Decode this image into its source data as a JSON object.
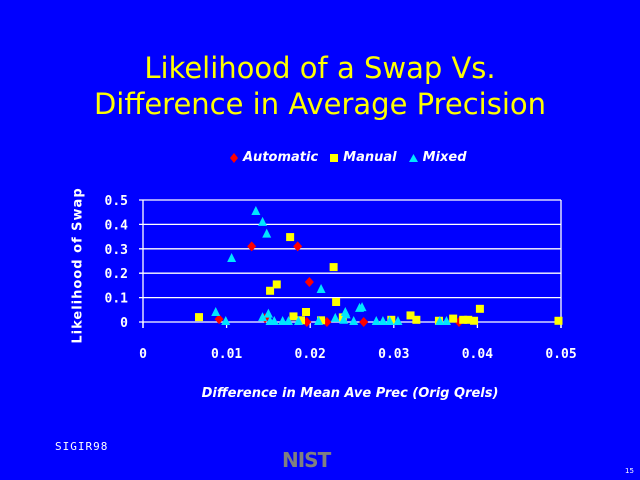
{
  "slide": {
    "title_line1": "Likelihood of a Swap Vs.",
    "title_line2": "Difference in Average Precision",
    "footer_left": "SIGIR98",
    "logo": "NIST",
    "page_number": "15"
  },
  "colors": {
    "background": "#0000ff",
    "title": "#ffff00",
    "automatic": "#ff0000",
    "manual": "#ffff00",
    "mixed": "#00e5ff",
    "axis": "#ffffff"
  },
  "chart_data": {
    "type": "scatter",
    "title": "Likelihood of a Swap Vs. Difference in Average Precision",
    "xlabel": "Difference in Mean Ave Prec (Orig Qrels)",
    "ylabel": "Likelihood of Swap",
    "xlim": [
      0,
      0.05
    ],
    "ylim": [
      0,
      0.5
    ],
    "xticks": [
      "0",
      "0.01",
      "0.02",
      "0.03",
      "0.04",
      "0.05"
    ],
    "yticks": [
      "0",
      "0.1",
      "0.2",
      "0.3",
      "0.4",
      "0.5"
    ],
    "grid": "horizontal",
    "legend_position": "top",
    "series": [
      {
        "name": "Automatic",
        "marker": "diamond",
        "points": [
          [
            0.0091,
            0.012
          ],
          [
            0.013,
            0.31
          ],
          [
            0.0146,
            0.016
          ],
          [
            0.0185,
            0.31
          ],
          [
            0.0196,
            0.0
          ],
          [
            0.0199,
            0.164
          ],
          [
            0.022,
            0.0
          ],
          [
            0.0264,
            0.0
          ],
          [
            0.0378,
            0.0
          ]
        ]
      },
      {
        "name": "Manual",
        "marker": "square",
        "points": [
          [
            0.0067,
            0.02
          ],
          [
            0.0152,
            0.128
          ],
          [
            0.016,
            0.154
          ],
          [
            0.0176,
            0.348
          ],
          [
            0.018,
            0.023
          ],
          [
            0.0189,
            0.007
          ],
          [
            0.0195,
            0.041
          ],
          [
            0.0213,
            0.007
          ],
          [
            0.0228,
            0.225
          ],
          [
            0.0231,
            0.082
          ],
          [
            0.0239,
            0.019
          ],
          [
            0.0297,
            0.009
          ],
          [
            0.032,
            0.027
          ],
          [
            0.0327,
            0.009
          ],
          [
            0.0354,
            0.005
          ],
          [
            0.0371,
            0.014
          ],
          [
            0.0383,
            0.009
          ],
          [
            0.0389,
            0.009
          ],
          [
            0.0396,
            0.005
          ],
          [
            0.0403,
            0.054
          ],
          [
            0.0497,
            0.005
          ]
        ]
      },
      {
        "name": "Mixed",
        "marker": "triangle",
        "points": [
          [
            0.0087,
            0.037
          ],
          [
            0.0099,
            0.0
          ],
          [
            0.0106,
            0.258
          ],
          [
            0.0135,
            0.451
          ],
          [
            0.0143,
            0.406
          ],
          [
            0.0143,
            0.016
          ],
          [
            0.0148,
            0.358
          ],
          [
            0.015,
            0.03
          ],
          [
            0.0152,
            0.0
          ],
          [
            0.0157,
            0.0
          ],
          [
            0.0167,
            0.0
          ],
          [
            0.0174,
            0.0
          ],
          [
            0.0186,
            0.0
          ],
          [
            0.021,
            0.0
          ],
          [
            0.0213,
            0.131
          ],
          [
            0.023,
            0.013
          ],
          [
            0.024,
            0.005
          ],
          [
            0.0242,
            0.037
          ],
          [
            0.0243,
            0.027
          ],
          [
            0.0252,
            0.0
          ],
          [
            0.0259,
            0.054
          ],
          [
            0.0262,
            0.057
          ],
          [
            0.0279,
            0.0
          ],
          [
            0.0287,
            0.0
          ],
          [
            0.0295,
            0.0
          ],
          [
            0.0305,
            0.0
          ],
          [
            0.0355,
            0.0
          ],
          [
            0.0363,
            0.0
          ]
        ]
      }
    ]
  }
}
